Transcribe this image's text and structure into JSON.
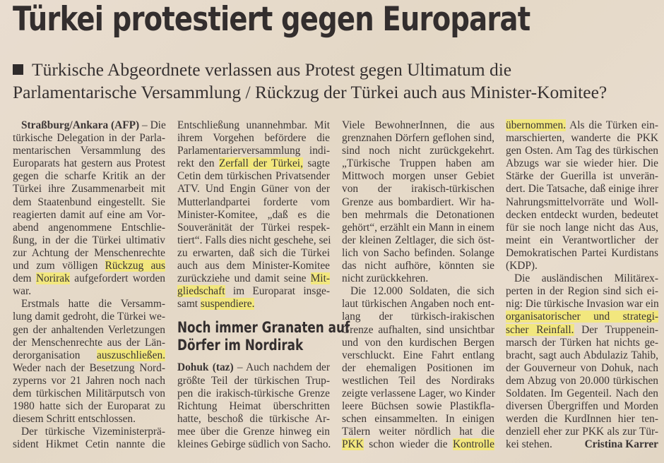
{
  "headline": "Türkei protestiert gegen Europarat",
  "subheadline": [
    "Türkische Abgeordnete verlassen aus Protest gegen Ultimatum die",
    "Parlamentarische Versammlung / Rückzug der Türkei auch aus Minister-Komitee?"
  ],
  "highlight_color": "#f2e77e",
  "columns": [
    {
      "blocks": [
        {
          "type": "para",
          "lines": [
            [
              {
                "t": "Straßburg/Ankara (AFP)",
                "b": true
              },
              {
                "t": " – Die"
              }
            ],
            "türkische Delegation in der Parla-",
            "mentarischen Versammlung des",
            "Europarats hat gestern aus Protest",
            "gegen die scharfe Kritik an der",
            "Türkei ihre Zusammenarbeit mit",
            "dem Staatenbund eingestellt. Sie",
            "reagierten damit auf eine am Vor-",
            "abend angenommene Entschlie-",
            "ßung, in der die Türkei ultimativ",
            "zur Achtung der Menschenrechte",
            [
              {
                "t": "und zum völligen "
              },
              {
                "t": "Rückzug aus",
                "hl": true
              }
            ],
            [
              {
                "t": "dem "
              },
              {
                "t": "Norirak",
                "hl": true
              },
              {
                "t": " aufgefordert worden"
              }
            ],
            "war."
          ]
        },
        {
          "type": "para",
          "lines": [
            "Erstmals hatte die Versamm-",
            "lung damit gedroht, die Türkei we-",
            "gen der anhaltenden Verletzungen",
            "der Menschenrechte aus der Län-",
            [
              {
                "t": "derorganisation "
              },
              {
                "t": "auszuschließen.",
                "hl": true
              }
            ],
            "Weder nach der Besetzung Nord-",
            "zyperns vor 21 Jahren noch nach",
            "dem türkischen Militärputsch von",
            "1980 hatte sich der Europarat zu",
            "diesem Schritt entschlossen."
          ]
        },
        {
          "type": "para",
          "open": true,
          "lines": [
            "Der türkische Vizeministerprä-",
            "sident Hikmet Cetin nannte die"
          ]
        }
      ]
    },
    {
      "blocks": [
        {
          "type": "para",
          "cont": true,
          "lines": [
            "Entschließung unannehmbar. Mit",
            "ihrem Vorgehen befördere die",
            "Parlamentarierversammlung indi-",
            [
              {
                "t": "rekt den "
              },
              {
                "t": "Zerfall der Türkei,",
                "hl": true
              },
              {
                "t": " sagte"
              }
            ],
            "Cetin dem türkischen Privatsender",
            "ATV. Und Engin Güner von der",
            "Mutterlandpartei forderte vom",
            "Minister-Komitee, „daß es die",
            "Souveränität der Türkei respek-",
            "tiert“. Falls dies nicht geschehe, sei",
            "zu erwarten, daß sich die Türkei",
            "auch aus dem Minister-Komitee",
            [
              {
                "t": "zurückziehe und damit seine "
              },
              {
                "t": "Mit-",
                "hl": true
              }
            ],
            [
              {
                "t": "gliedschaft",
                "hl": true
              },
              {
                "t": " im Europarat insge-"
              }
            ],
            [
              {
                "t": "samt "
              },
              {
                "t": "suspendiere.",
                "hl": true
              }
            ]
          ]
        },
        {
          "type": "heading",
          "lines": [
            "Noch immer Granaten auf",
            "Dörfer im Nordirak"
          ]
        },
        {
          "type": "para",
          "open": true,
          "noindent": true,
          "lines": [
            [
              {
                "t": "Dohuk (taz)",
                "b": true
              },
              {
                "t": " – Auch nachdem der"
              }
            ],
            "größte Teil der türkischen Trup-",
            "pen die irakisch-türkische Grenze",
            "Richtung Heimat überschritten",
            "hatte, beschoß die türkische Ar-",
            "mee über die Grenze hinweg ein",
            "kleines Gebirge südlich von Sacho."
          ]
        }
      ]
    },
    {
      "blocks": [
        {
          "type": "para",
          "cont": true,
          "lines": [
            "Viele BewohnerInnen, die aus",
            "grenznahen Dörfern geflohen sind,",
            "sind noch nicht zurückgekehrt.",
            "„Türkische Truppen haben am",
            "Mittwoch morgen unser Gebiet",
            "von der irakisch-türkischen",
            "Grenze aus bombardiert. Wir ha-",
            "ben mehrmals die Detonationen",
            "gehört“, erzählt ein Mann in einem",
            "der kleinen Zeltlager, die sich öst-",
            "lich von Sacho befinden. Solange",
            "das nicht aufhöre, könnten sie",
            "nicht zurückkehren."
          ]
        },
        {
          "type": "para",
          "open": true,
          "lines": [
            "Die 12.000 Soldaten, die sich",
            "laut türkischen Angaben noch ent-",
            "lang der türkisch-irakischen",
            "Grenze aufhalten, sind unsichtbar",
            "und von den kurdischen Bergen",
            "verschluckt. Eine Fahrt entlang",
            "der ehemaligen Positionen im",
            "westlichen Teil des Nordiraks",
            "zeigte verlassene Lager, wo Kinder",
            "leere Büchsen sowie Plastikfla-",
            "schen einsammelten. In einigen",
            "Tälern weiter nördlich hat die",
            [
              {
                "t": "PKK",
                "hl": true
              },
              {
                "t": " schon wieder die "
              },
              {
                "t": "Kontrolle",
                "hl": true
              }
            ]
          ]
        }
      ]
    },
    {
      "blocks": [
        {
          "type": "para",
          "cont": true,
          "lines": [
            [
              {
                "t": "übernommen.",
                "hl": true
              },
              {
                "t": " Als die Türken ein-"
              }
            ],
            "marschierten, wanderte die PKK",
            "gen Osten. Am Tag des türkischen",
            "Abzugs war sie wieder hier. Die",
            "Stärke der Guerilla ist unverän-",
            "dert. Die Tatsache, daß einige ihrer",
            "Nahrungsmittelvorräte und Woll-",
            "decken entdeckt wurden, bedeutet",
            "für sie noch lange nicht das Aus,",
            "meint ein Verantwortlicher der",
            "Demokratischen Partei Kurdistans",
            "(KDP)."
          ]
        },
        {
          "type": "para",
          "lines": [
            "Die ausländischen Militärex-",
            "perten in der Region sind sich ei-",
            "nig: Die türkische Invasion war ein",
            [
              {
                "t": "organisatorischer und strategi-",
                "hl": true
              }
            ],
            [
              {
                "t": "scher Reinfall.",
                "hl": true
              },
              {
                "t": " Der Truppenein-"
              }
            ],
            "marsch der Türken hat nichts ge-",
            "bracht, sagt auch Abdulaziz Tahib,",
            "der Gouverneur von Dohuk, nach",
            "dem Abzug von 20.000 türkischen",
            "Soldaten. Im Gegenteil. Nach den",
            "diversen Übergriffen und Morden",
            "werden die KurdInnen hier ten-",
            "denziell eher zur PKK als zur Tür-",
            "kei stehen."
          ]
        }
      ]
    }
  ],
  "byline": "Cristina Karrer"
}
